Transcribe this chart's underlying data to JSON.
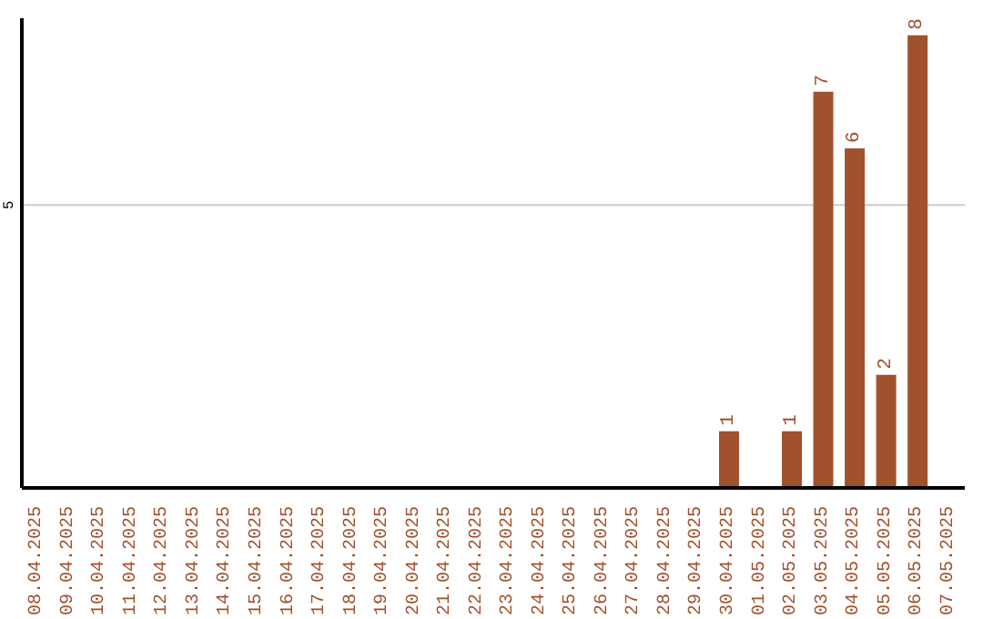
{
  "chart_data": {
    "type": "bar",
    "categories": [
      "08.04.2025",
      "09.04.2025",
      "10.04.2025",
      "11.04.2025",
      "12.04.2025",
      "13.04.2025",
      "14.04.2025",
      "15.04.2025",
      "16.04.2025",
      "17.04.2025",
      "18.04.2025",
      "19.04.2025",
      "20.04.2025",
      "21.04.2025",
      "22.04.2025",
      "23.04.2025",
      "24.04.2025",
      "25.04.2025",
      "26.04.2025",
      "27.04.2025",
      "28.04.2025",
      "29.04.2025",
      "30.04.2025",
      "01.05.2025",
      "02.05.2025",
      "03.05.2025",
      "04.05.2025",
      "05.05.2025",
      "06.05.2025",
      "07.05.2025"
    ],
    "values": [
      null,
      null,
      null,
      null,
      null,
      null,
      null,
      null,
      null,
      null,
      null,
      null,
      null,
      null,
      null,
      null,
      null,
      null,
      null,
      null,
      null,
      null,
      1,
      null,
      1,
      7,
      6,
      2,
      8,
      null
    ],
    "color": "#a0522d",
    "ylim": [
      0,
      8.3
    ],
    "yticks": [
      5
    ],
    "grid": "y",
    "data_labels": true,
    "legend": false
  }
}
